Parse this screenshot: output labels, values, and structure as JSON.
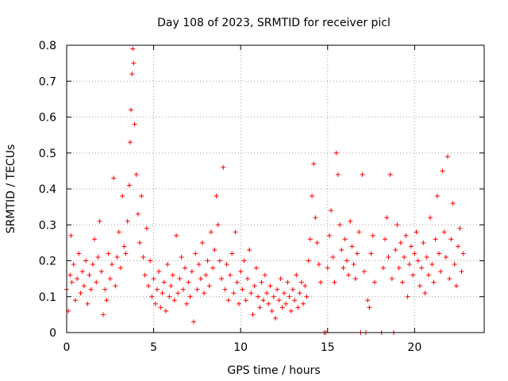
{
  "chart_data": {
    "type": "scatter",
    "title": "Day 108 of 2023, SRMTID for receiver picl",
    "xlabel": "GPS time / hours",
    "ylabel": "SRMTID / TECUs",
    "xlim": [
      0,
      24
    ],
    "ylim": [
      0,
      0.8
    ],
    "xticks": [
      0,
      5,
      10,
      15,
      20
    ],
    "yticks": [
      0,
      0.1,
      0.2,
      0.3,
      0.4,
      0.5,
      0.6,
      0.7,
      0.8
    ],
    "xtick_labels": [
      "0",
      "5",
      "10",
      "15",
      "20"
    ],
    "ytick_labels": [
      "0",
      "0.1",
      "0.2",
      "0.3",
      "0.4",
      "0.5",
      "0.6",
      "0.7",
      "0.8"
    ],
    "grid": true,
    "marker": "+",
    "color": "#ff0000",
    "series": [
      {
        "name": "SRMTID",
        "points": [
          [
            0.0,
            0.12
          ],
          [
            0.1,
            0.06
          ],
          [
            0.2,
            0.16
          ],
          [
            0.25,
            0.27
          ],
          [
            0.3,
            0.14
          ],
          [
            0.4,
            0.19
          ],
          [
            0.5,
            0.09
          ],
          [
            0.6,
            0.15
          ],
          [
            0.7,
            0.22
          ],
          [
            0.8,
            0.11
          ],
          [
            0.9,
            0.17
          ],
          [
            1.0,
            0.13
          ],
          [
            1.1,
            0.2
          ],
          [
            1.2,
            0.08
          ],
          [
            1.3,
            0.16
          ],
          [
            1.4,
            0.12
          ],
          [
            1.5,
            0.19
          ],
          [
            1.6,
            0.26
          ],
          [
            1.7,
            0.14
          ],
          [
            1.8,
            0.21
          ],
          [
            1.9,
            0.31
          ],
          [
            2.0,
            0.17
          ],
          [
            2.1,
            0.05
          ],
          [
            2.2,
            0.12
          ],
          [
            2.3,
            0.09
          ],
          [
            2.4,
            0.22
          ],
          [
            2.5,
            0.15
          ],
          [
            2.6,
            0.19
          ],
          [
            2.7,
            0.43
          ],
          [
            2.8,
            0.13
          ],
          [
            2.9,
            0.21
          ],
          [
            3.0,
            0.28
          ],
          [
            3.1,
            0.18
          ],
          [
            3.2,
            0.38
          ],
          [
            3.3,
            0.24
          ],
          [
            3.4,
            0.22
          ],
          [
            3.5,
            0.31
          ],
          [
            3.6,
            0.41
          ],
          [
            3.65,
            0.53
          ],
          [
            3.7,
            0.62
          ],
          [
            3.75,
            0.72
          ],
          [
            3.8,
            0.79
          ],
          [
            3.85,
            0.75
          ],
          [
            3.9,
            0.58
          ],
          [
            4.0,
            0.44
          ],
          [
            4.1,
            0.33
          ],
          [
            4.2,
            0.25
          ],
          [
            4.3,
            0.38
          ],
          [
            4.4,
            0.21
          ],
          [
            4.5,
            0.16
          ],
          [
            4.6,
            0.29
          ],
          [
            4.7,
            0.13
          ],
          [
            4.8,
            0.2
          ],
          [
            4.9,
            0.1
          ],
          [
            5.0,
            0.15
          ],
          [
            5.1,
            0.08
          ],
          [
            5.2,
            0.12
          ],
          [
            5.3,
            0.17
          ],
          [
            5.4,
            0.07
          ],
          [
            5.5,
            0.11
          ],
          [
            5.6,
            0.14
          ],
          [
            5.7,
            0.06
          ],
          [
            5.8,
            0.19
          ],
          [
            5.9,
            0.1
          ],
          [
            6.0,
            0.13
          ],
          [
            6.1,
            0.16
          ],
          [
            6.2,
            0.09
          ],
          [
            6.3,
            0.27
          ],
          [
            6.4,
            0.11
          ],
          [
            6.5,
            0.15
          ],
          [
            6.6,
            0.21
          ],
          [
            6.7,
            0.12
          ],
          [
            6.8,
            0.18
          ],
          [
            6.9,
            0.08
          ],
          [
            7.0,
            0.14
          ],
          [
            7.1,
            0.1
          ],
          [
            7.2,
            0.17
          ],
          [
            7.3,
            0.03
          ],
          [
            7.4,
            0.22
          ],
          [
            7.5,
            0.12
          ],
          [
            7.6,
            0.19
          ],
          [
            7.7,
            0.15
          ],
          [
            7.8,
            0.25
          ],
          [
            7.9,
            0.11
          ],
          [
            8.0,
            0.16
          ],
          [
            8.1,
            0.2
          ],
          [
            8.2,
            0.13
          ],
          [
            8.3,
            0.28
          ],
          [
            8.4,
            0.18
          ],
          [
            8.5,
            0.23
          ],
          [
            8.6,
            0.38
          ],
          [
            8.7,
            0.3
          ],
          [
            8.8,
            0.2
          ],
          [
            8.9,
            0.15
          ],
          [
            9.0,
            0.46
          ],
          [
            9.1,
            0.12
          ],
          [
            9.2,
            0.19
          ],
          [
            9.3,
            0.09
          ],
          [
            9.4,
            0.16
          ],
          [
            9.5,
            0.22
          ],
          [
            9.6,
            0.11
          ],
          [
            9.7,
            0.28
          ],
          [
            9.8,
            0.14
          ],
          [
            9.9,
            0.08
          ],
          [
            10.0,
            0.17
          ],
          [
            10.1,
            0.12
          ],
          [
            10.2,
            0.2
          ],
          [
            10.3,
            0.09
          ],
          [
            10.4,
            0.15
          ],
          [
            10.5,
            0.23
          ],
          [
            10.6,
            0.11
          ],
          [
            10.7,
            0.05
          ],
          [
            10.8,
            0.13
          ],
          [
            10.9,
            0.18
          ],
          [
            11.0,
            0.1
          ],
          [
            11.1,
            0.07
          ],
          [
            11.2,
            0.14
          ],
          [
            11.3,
            0.09
          ],
          [
            11.4,
            0.16
          ],
          [
            11.5,
            0.11
          ],
          [
            11.6,
            0.08
          ],
          [
            11.7,
            0.13
          ],
          [
            11.8,
            0.06
          ],
          [
            11.9,
            0.1
          ],
          [
            12.0,
            0.04
          ],
          [
            12.1,
            0.12
          ],
          [
            12.2,
            0.09
          ],
          [
            12.3,
            0.15
          ],
          [
            12.4,
            0.07
          ],
          [
            12.5,
            0.11
          ],
          [
            12.6,
            0.08
          ],
          [
            12.7,
            0.14
          ],
          [
            12.8,
            0.1
          ],
          [
            12.9,
            0.06
          ],
          [
            13.0,
            0.12
          ],
          [
            13.1,
            0.09
          ],
          [
            13.2,
            0.16
          ],
          [
            13.3,
            0.07
          ],
          [
            13.4,
            0.11
          ],
          [
            13.5,
            0.14
          ],
          [
            13.6,
            0.08
          ],
          [
            13.7,
            0.13
          ],
          [
            13.8,
            0.1
          ],
          [
            13.9,
            0.2
          ],
          [
            14.0,
            0.26
          ],
          [
            14.1,
            0.38
          ],
          [
            14.2,
            0.47
          ],
          [
            14.3,
            0.32
          ],
          [
            14.4,
            0.25
          ],
          [
            14.5,
            0.19
          ],
          [
            14.6,
            0.14
          ],
          [
            14.8,
            0.0
          ],
          [
            14.9,
            0.0
          ],
          [
            15.0,
            0.18
          ],
          [
            15.1,
            0.27
          ],
          [
            15.2,
            0.34
          ],
          [
            15.3,
            0.21
          ],
          [
            15.4,
            0.14
          ],
          [
            15.5,
            0.5
          ],
          [
            15.6,
            0.44
          ],
          [
            15.7,
            0.3
          ],
          [
            15.8,
            0.23
          ],
          [
            15.9,
            0.18
          ],
          [
            16.0,
            0.26
          ],
          [
            16.1,
            0.2
          ],
          [
            16.2,
            0.16
          ],
          [
            16.3,
            0.31
          ],
          [
            16.4,
            0.24
          ],
          [
            16.5,
            0.19
          ],
          [
            16.6,
            0.15
          ],
          [
            16.7,
            0.22
          ],
          [
            16.8,
            0.28
          ],
          [
            16.9,
            0.0
          ],
          [
            17.0,
            0.44
          ],
          [
            17.1,
            0.17
          ],
          [
            17.2,
            0.0
          ],
          [
            17.3,
            0.09
          ],
          [
            17.4,
            0.07
          ],
          [
            17.5,
            0.22
          ],
          [
            17.6,
            0.27
          ],
          [
            17.7,
            0.14
          ],
          [
            18.1,
            0.0
          ],
          [
            18.2,
            0.18
          ],
          [
            18.3,
            0.26
          ],
          [
            18.4,
            0.32
          ],
          [
            18.5,
            0.21
          ],
          [
            18.6,
            0.44
          ],
          [
            18.7,
            0.15
          ],
          [
            18.8,
            0.0
          ],
          [
            18.9,
            0.23
          ],
          [
            19.0,
            0.3
          ],
          [
            19.1,
            0.18
          ],
          [
            19.2,
            0.25
          ],
          [
            19.3,
            0.14
          ],
          [
            19.4,
            0.21
          ],
          [
            19.5,
            0.27
          ],
          [
            19.6,
            0.1
          ],
          [
            19.7,
            0.19
          ],
          [
            19.8,
            0.24
          ],
          [
            19.9,
            0.16
          ],
          [
            20.0,
            0.22
          ],
          [
            20.1,
            0.28
          ],
          [
            20.2,
            0.2
          ],
          [
            20.3,
            0.13
          ],
          [
            20.4,
            0.18
          ],
          [
            20.5,
            0.25
          ],
          [
            20.6,
            0.11
          ],
          [
            20.7,
            0.21
          ],
          [
            20.8,
            0.16
          ],
          [
            20.9,
            0.32
          ],
          [
            21.0,
            0.19
          ],
          [
            21.1,
            0.14
          ],
          [
            21.2,
            0.26
          ],
          [
            21.3,
            0.38
          ],
          [
            21.4,
            0.22
          ],
          [
            21.5,
            0.17
          ],
          [
            21.6,
            0.45
          ],
          [
            21.7,
            0.28
          ],
          [
            21.8,
            0.21
          ],
          [
            21.9,
            0.49
          ],
          [
            22.0,
            0.15
          ],
          [
            22.1,
            0.26
          ],
          [
            22.2,
            0.36
          ],
          [
            22.3,
            0.19
          ],
          [
            22.4,
            0.13
          ],
          [
            22.5,
            0.24
          ],
          [
            22.6,
            0.29
          ],
          [
            22.7,
            0.17
          ],
          [
            22.8,
            0.22
          ]
        ]
      }
    ]
  }
}
